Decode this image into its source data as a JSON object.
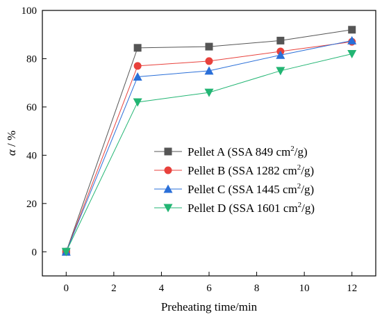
{
  "chart_data": {
    "type": "line",
    "x": [
      0,
      3,
      6,
      9,
      12
    ],
    "series": [
      {
        "name": "Pellet A (SSA 849 cm²/g)",
        "name_base": "Pellet A (SSA 849 cm",
        "name_sup": "2",
        "name_tail": "/g)",
        "marker": "square",
        "color": "#555555",
        "values": [
          0,
          84.5,
          85,
          87.5,
          92
        ]
      },
      {
        "name": "Pellet B (SSA 1282 cm²/g)",
        "name_base": "Pellet B (SSA 1282 cm",
        "name_sup": "2",
        "name_tail": "/g)",
        "marker": "circle",
        "color": "#e8413c",
        "values": [
          0,
          77,
          79,
          83,
          87
        ]
      },
      {
        "name": "Pellet C (SSA 1445 cm²/g)",
        "name_base": "Pellet C (SSA 1445 cm",
        "name_sup": "2",
        "name_tail": "/g)",
        "marker": "triangle-up",
        "color": "#2a6fd8",
        "values": [
          0,
          72.5,
          75,
          81.5,
          87.5
        ]
      },
      {
        "name": "Pellet D (SSA 1601 cm²/g)",
        "name_base": "Pellet D (SSA 1601 cm",
        "name_sup": "2",
        "name_tail": "/g)",
        "marker": "triangle-down",
        "color": "#22b573",
        "values": [
          0,
          62,
          66,
          75,
          82
        ]
      }
    ],
    "xlabel": "Preheating time/min",
    "ylabel_symbol": "α",
    "ylabel_unit": " / %",
    "xlim": [
      -1,
      13
    ],
    "ylim": [
      -10,
      100
    ],
    "xticks": [
      0,
      2,
      4,
      6,
      8,
      10,
      12
    ],
    "yticks": [
      0,
      20,
      40,
      60,
      80,
      100
    ],
    "grid": false,
    "legend_position": "center-right"
  }
}
